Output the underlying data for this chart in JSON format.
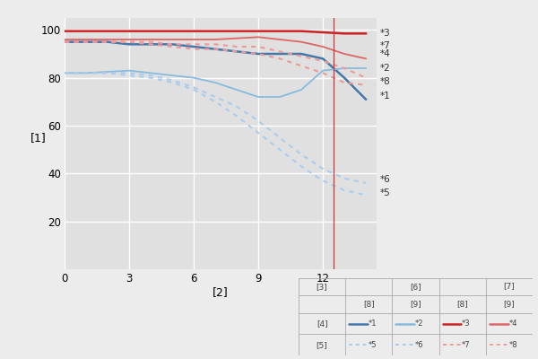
{
  "xlabel": "[2]",
  "ylabel": "[1]",
  "xlim": [
    0,
    14.5
  ],
  "ylim": [
    0,
    105
  ],
  "xticks": [
    0,
    3,
    6,
    9,
    12
  ],
  "yticks": [
    20,
    40,
    60,
    80,
    100
  ],
  "fig_bg": "#ececec",
  "plot_bg": "#e0e0e0",
  "grid_color": "#ffffff",
  "vline_x": 12.5,
  "vline_color": "#cc3333",
  "curves": [
    {
      "label": "*1",
      "color": "#4477aa",
      "linestyle": "solid",
      "linewidth": 1.8,
      "x": [
        0,
        1,
        2,
        3,
        4,
        5,
        6,
        7,
        8,
        9,
        10,
        11,
        12,
        13,
        14
      ],
      "y": [
        95,
        95,
        95,
        94,
        94,
        94,
        93,
        92,
        91,
        90,
        90,
        90,
        88,
        80,
        71
      ]
    },
    {
      "label": "*2",
      "color": "#88bbdd",
      "linestyle": "solid",
      "linewidth": 1.3,
      "x": [
        0,
        1,
        2,
        3,
        4,
        5,
        6,
        7,
        8,
        9,
        10,
        11,
        12,
        13,
        14
      ],
      "y": [
        82,
        82,
        82.5,
        83,
        82,
        81,
        80,
        78,
        75,
        72,
        72,
        75,
        83,
        84,
        84
      ]
    },
    {
      "label": "*3",
      "color": "#cc2222",
      "linestyle": "solid",
      "linewidth": 1.8,
      "x": [
        0,
        1,
        2,
        3,
        4,
        5,
        6,
        7,
        8,
        9,
        10,
        11,
        12,
        13,
        14
      ],
      "y": [
        99.5,
        99.5,
        99.5,
        99.5,
        99.5,
        99.5,
        99.5,
        99.5,
        99.5,
        99.5,
        99.5,
        99.5,
        99,
        98.5,
        98.5
      ]
    },
    {
      "label": "*4",
      "color": "#dd6666",
      "linestyle": "solid",
      "linewidth": 1.3,
      "x": [
        0,
        1,
        2,
        3,
        4,
        5,
        6,
        7,
        8,
        9,
        10,
        11,
        12,
        13,
        14
      ],
      "y": [
        96,
        96,
        96,
        96,
        96,
        96,
        96,
        96,
        96.5,
        97,
        96,
        95,
        93,
        90,
        88
      ]
    },
    {
      "label": "*5",
      "color": "#aaccee",
      "linestyle": "dotted",
      "linewidth": 1.5,
      "x": [
        0,
        1,
        2,
        3,
        4,
        5,
        6,
        7,
        8,
        9,
        10,
        11,
        12,
        13,
        14
      ],
      "y": [
        82,
        82,
        82,
        81,
        80,
        78,
        75,
        70,
        64,
        57,
        50,
        43,
        37,
        33,
        31
      ]
    },
    {
      "label": "*6",
      "color": "#aaccee",
      "linestyle": "dotted",
      "linewidth": 1.5,
      "x": [
        0,
        1,
        2,
        3,
        4,
        5,
        6,
        7,
        8,
        9,
        10,
        11,
        12,
        13,
        14
      ],
      "y": [
        82,
        82,
        82,
        82,
        81,
        79,
        76,
        72,
        68,
        62,
        55,
        48,
        42,
        38,
        36
      ]
    },
    {
      "label": "*7",
      "color": "#ee9999",
      "linestyle": "dotted",
      "linewidth": 1.5,
      "x": [
        0,
        1,
        2,
        3,
        4,
        5,
        6,
        7,
        8,
        9,
        10,
        11,
        12,
        13,
        14
      ],
      "y": [
        95,
        95,
        95,
        95,
        95,
        94,
        94,
        94,
        93,
        93,
        91,
        89,
        87,
        84,
        80
      ]
    },
    {
      "label": "*8",
      "color": "#ee9999",
      "linestyle": "dotted",
      "linewidth": 1.5,
      "x": [
        0,
        1,
        2,
        3,
        4,
        5,
        6,
        7,
        8,
        9,
        10,
        11,
        12,
        13,
        14
      ],
      "y": [
        95,
        95,
        95,
        95,
        94,
        93,
        92,
        92,
        91,
        90,
        88,
        85,
        82,
        78,
        77
      ]
    }
  ],
  "right_labels": [
    {
      "y": 98.5,
      "text": "*3"
    },
    {
      "y": 93.5,
      "text": "*7"
    },
    {
      "y": 90.0,
      "text": "*4"
    },
    {
      "y": 84.0,
      "text": "*2"
    },
    {
      "y": 78.5,
      "text": "*8"
    },
    {
      "y": 72.5,
      "text": "*1"
    },
    {
      "y": 37.5,
      "text": "*6"
    },
    {
      "y": 32.0,
      "text": "*5"
    }
  ],
  "table_colors": {
    "*1": "#4477aa",
    "*2": "#88bbdd",
    "*3": "#cc2222",
    "*4": "#dd6666",
    "*5": "#aaccee",
    "*6": "#aaccee",
    "*7": "#ee9999",
    "*8": "#ee9999"
  },
  "table_linestyles": {
    "*1": "solid",
    "*2": "solid",
    "*3": "solid",
    "*4": "solid",
    "*5": "dotted",
    "*6": "dotted",
    "*7": "dotted",
    "*8": "dotted"
  }
}
